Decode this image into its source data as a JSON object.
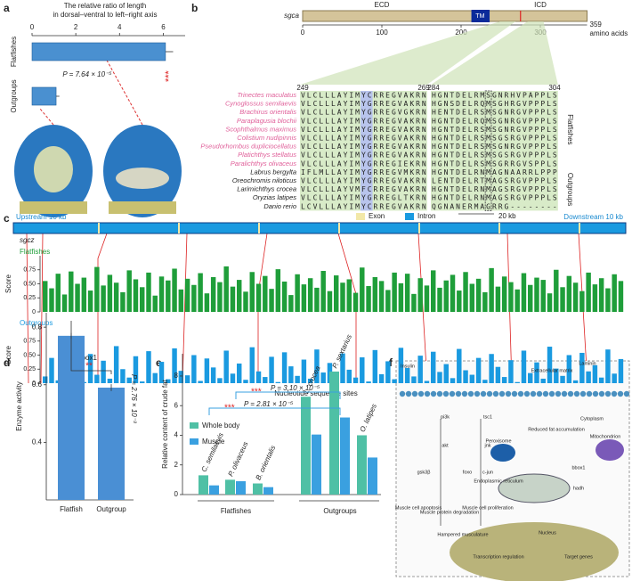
{
  "panel_labels": [
    "a",
    "b",
    "c",
    "d",
    "e",
    "f"
  ],
  "chart_data": [
    {
      "type": "hbar",
      "title": [
        "The relative ratio of length",
        "in dorsal–ventral to left–right axis"
      ],
      "categories": [
        "Flatfishes",
        "Outgroups"
      ],
      "values": [
        6.1,
        1.1
      ],
      "errors": [
        0.35,
        0.15
      ],
      "color": "#4a90d0",
      "xlim": [
        0,
        7
      ],
      "xticks": [
        0,
        2,
        4,
        6
      ],
      "annotation": "***",
      "p_label": "P = 7.64 × 10⁻⁵"
    },
    {
      "type": "track",
      "gene": "sgcz",
      "upstream": "Upstream 10 kb",
      "downstream": "Downstream 10 kb",
      "legend": [
        "Exon",
        "Intron"
      ],
      "scale_bar": "20 kb",
      "ylabel": "Score",
      "xlabel": "Nucleotide sequence sites",
      "ylim": [
        0,
        1
      ],
      "yticks": [
        0,
        0.25,
        {
          "value": 0.5,
          "label": "0.50"
        },
        0.75
      ],
      "series": [
        {
          "name": "Flatfishes",
          "color": "#1f9e3a",
          "values": [
            0.55,
            0.42,
            0.68,
            0.31,
            0.72,
            0.5,
            0.61,
            0.38,
            0.8,
            0.47,
            0.66,
            0.52,
            0.35,
            0.74,
            0.58,
            0.44,
            0.7,
            0.29,
            0.63,
            0.56,
            0.77,
            0.4,
            0.59,
            0.48,
            0.69,
            0.33,
            0.62,
            0.53,
            0.81,
            0.45,
            0.57,
            0.36,
            0.71,
            0.5,
            0.64,
            0.41,
            0.76,
            0.54,
            0.3,
            0.67,
            0.49,
            0.6,
            0.43,
            0.73,
            0.37,
            0.65,
            0.52,
            0.58,
            0.34,
            0.79,
            0.46,
            0.62,
            0.55,
            0.39,
            0.7,
            0.51,
            0.68,
            0.32,
            0.6,
            0.47,
            0.74,
            0.43,
            0.56,
            0.66,
            0.38,
            0.71,
            0.5,
            0.59,
            0.35,
            0.78,
            0.45,
            0.63,
            0.53,
            0.4,
            0.69,
            0.48,
            0.61,
            0.57,
            0.33,
            0.75,
            0.44,
            0.64,
            0.52,
            0.37,
            0.7,
            0.49,
            0.6,
            0.42,
            0.67,
            0.55
          ]
        },
        {
          "name": "Outgroups",
          "color": "#1a9ae0",
          "values": [
            0.12,
            0.45,
            0.05,
            0.6,
            0.2,
            0.33,
            0.02,
            0.52,
            0.15,
            0.4,
            0.08,
            0.66,
            0.25,
            0.1,
            0.48,
            0.03,
            0.57,
            0.18,
            0.38,
            0.07,
            0.62,
            0.22,
            0.14,
            0.5,
            0.04,
            0.44,
            0.28,
            0.09,
            0.58,
            0.17,
            0.35,
            0.06,
            0.64,
            0.21,
            0.11,
            0.47,
            0.02,
            0.55,
            0.3,
            0.13,
            0.42,
            0.08,
            0.6,
            0.19,
            0.36,
            0.05,
            0.53,
            0.24,
            0.1,
            0.46,
            0.03,
            0.59,
            0.16,
            0.39,
            0.07,
            0.63,
            0.27,
            0.12,
            0.49,
            0.04,
            0.56,
            0.2,
            0.34,
            0.09,
            0.61,
            0.23,
            0.15,
            0.45,
            0.06,
            0.52,
            0.29,
            0.11,
            0.41,
            0.02,
            0.58,
            0.18,
            0.37,
            0.08,
            0.65,
            0.26,
            0.13,
            0.5,
            0.05,
            0.54,
            0.21,
            0.32,
            0.1,
            0.6,
            0.17,
            0.43
          ]
        }
      ]
    },
    {
      "type": "bar",
      "title": "bbox1",
      "categories": [
        "Flatfish",
        "Outgroup"
      ],
      "values": [
        0.77,
        0.59
      ],
      "errors": [
        0.01,
        0.012
      ],
      "color": "#4a8fd4",
      "ylim": [
        0.2,
        0.85
      ],
      "yticks": [
        0.4,
        0.6,
        0.8
      ],
      "ylabel": "Enzyme activity",
      "annotation": "**",
      "p_label": "P = 2.76 × 10⁻³"
    },
    {
      "type": "grouped-bar",
      "categories": [
        "C. semilaevis",
        "P. olivaceus",
        "B. orientalis",
        "L. crocea",
        "P. sextarius",
        "O. latipes"
      ],
      "groups": [
        "Flatfishes",
        "Outgroups"
      ],
      "series": [
        {
          "name": "Whole body",
          "color": "#4fc0a5",
          "values": [
            1.3,
            1.0,
            0.75,
            6.6,
            8.3,
            4.0
          ]
        },
        {
          "name": "Muscle",
          "color": "#3aa0e0",
          "values": [
            0.62,
            0.9,
            0.5,
            4.05,
            5.2,
            2.5
          ]
        }
      ],
      "ylim": [
        0,
        9.5
      ],
      "yticks": [
        0,
        2,
        4,
        6,
        8
      ],
      "ylabel": "Relative content of crude fat",
      "annotations": [
        "***",
        "***"
      ],
      "p_labels": [
        "P = 3.10 × 10⁻⁵",
        "P = 2.81 × 10⁻⁵"
      ]
    }
  ],
  "panel_b": {
    "protein": "sgca",
    "domains": [
      "ECD",
      "TM",
      "ICD"
    ],
    "xticks": [
      0,
      100,
      200,
      300
    ],
    "length": 359,
    "unit": "amino acids",
    "positions": [
      249,
      269,
      284,
      304
    ],
    "group_labels": [
      "Flatfishes",
      "Outgroups"
    ],
    "flatfishes": [
      {
        "name": "Trinectes maculatus",
        "seq": [
          "VLCLLLAYIMYCRREGVAKRN",
          "HGNTDELRMSGNRHVPAPPLS"
        ]
      },
      {
        "name": "Cynoglossus semilaevis",
        "seq": [
          "VLCLLLAYIMYGRREGVAKRN",
          "HGNSDELRQMSGHRGVPPPLS"
        ]
      },
      {
        "name": "Brachirus orientalis",
        "seq": [
          "VLCLLLAYIMYGRREGVGKRN",
          "HENTDELRSMSGNRGVPPPLS"
        ]
      },
      {
        "name": "Paraplagusia blochii",
        "seq": [
          "VLCLLLAYIMYGRREGVAKRN",
          "HGNTDELRQMSGNRGVPPPLS"
        ]
      },
      {
        "name": "Scophthalmus maximus",
        "seq": [
          "VLCLLLAYIMYGRREGVAKRN",
          "HGNTDELRSMSGNRGVPPPLS"
        ]
      },
      {
        "name": "Colistium nudipinnis",
        "seq": [
          "VLCLLLAYIMYGRREGVAKRN",
          "HGNTDELRSMSGSRGVPPPLS"
        ]
      },
      {
        "name": "Pseudorhombus dupliciocellatus",
        "seq": [
          "VLCLLLAYIMYGRREGVAKRN",
          "HGNTDELRSMSGNRGVPPPLS"
        ]
      },
      {
        "name": "Platichthys stellatus",
        "seq": [
          "VLCLLLAYIMYGRREGVAKRN",
          "HGNTDELRSMSGSRGVPPPLS"
        ]
      },
      {
        "name": "Paralichthys olivaceus",
        "seq": [
          "VLCLLLAYIMYGRREGIEKRN",
          "HGNTDELRSMSGRRGVSPPLS"
        ]
      }
    ],
    "outgroups": [
      {
        "name": "Labrus bergylta",
        "seq": [
          "IFLMLLAYIMYGRREGVMKRN",
          "HGNTDELRNMAGNAARRLPPP"
        ]
      },
      {
        "name": "Oreochromis niloticus",
        "seq": [
          "VLCLLLAYIMYGRREGVAKRN",
          "LENTDELRTMAGSRGVPPPLS"
        ]
      },
      {
        "name": "Larimichthys crocea",
        "seq": [
          "VLCLLLAYVMFCRREGVAKRN",
          "HGNTDELRNMAGSRGVPPPLS"
        ]
      },
      {
        "name": "Oryzias latipes",
        "seq": [
          "VLCLLLAYIMYGRREGLTKRN",
          "HGNTDELRNMAGSRGVPPPLS"
        ]
      },
      {
        "name": "Danio rerio",
        "seq": [
          "LCVLLLAYIMYCRREGVAKRN",
          "QGNANERMAGRRG--------"
        ]
      }
    ]
  },
  "panel_f": {
    "labels": [
      "Extracellular matrix",
      "Laminin",
      "Insulin",
      "Cytoplasm",
      "pi3k",
      "akt",
      "gsk3β",
      "foxo",
      "tsc1",
      "jnk",
      "c-jun",
      "Muscle cell apoptosis",
      "Muscle protein degradation",
      "Muscle cell proliferation",
      "Hampered musculature",
      "Reduced fat accumulation",
      "Mitochondrion",
      "Peroxisome",
      "bbox1",
      "hadh",
      "Nucleus",
      "Transcription regulation",
      "Target genes",
      "Endoplasmic reticulum"
    ]
  }
}
